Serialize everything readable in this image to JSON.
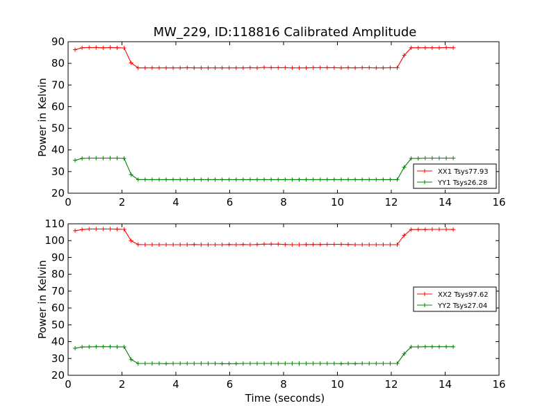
{
  "title": "MW_229, ID:118816 Calibrated Amplitude",
  "colors": {
    "xx": "#ff0000",
    "yy": "#008000"
  },
  "chart_data": [
    {
      "type": "line",
      "title": "MW_229, ID:118816 Calibrated Amplitude",
      "xlabel": "",
      "ylabel": "Power in Kelvin",
      "xlim": [
        0,
        16
      ],
      "ylim": [
        20,
        90
      ],
      "xticks": [
        0,
        2,
        4,
        6,
        8,
        10,
        12,
        14,
        16
      ],
      "yticks": [
        20,
        30,
        40,
        50,
        60,
        70,
        80,
        90
      ],
      "grid": false,
      "legend_position": "lower-right",
      "x": [
        0.26,
        0.52,
        0.78,
        1.04,
        1.3,
        1.56,
        1.82,
        2.08,
        2.34,
        2.6,
        2.86,
        3.12,
        3.38,
        3.64,
        3.9,
        4.16,
        4.42,
        4.68,
        4.94,
        5.2,
        5.46,
        5.72,
        5.98,
        6.24,
        6.5,
        6.76,
        7.02,
        7.28,
        7.54,
        7.8,
        8.06,
        8.32,
        8.58,
        8.84,
        9.1,
        9.36,
        9.62,
        9.88,
        10.14,
        10.4,
        10.66,
        10.92,
        11.18,
        11.44,
        11.7,
        11.96,
        12.22,
        12.48,
        12.74,
        13.0,
        13.26,
        13.52,
        13.78,
        14.04,
        14.3
      ],
      "series": [
        {
          "name": "XX1 Tsys77.93",
          "color": "#ff0000",
          "values": [
            86.3,
            87.2,
            87.3,
            87.3,
            87.2,
            87.3,
            87.2,
            87.1,
            80.2,
            77.9,
            77.9,
            77.9,
            77.9,
            77.9,
            77.9,
            77.9,
            78.0,
            77.9,
            77.9,
            77.9,
            77.9,
            77.9,
            77.9,
            77.9,
            77.9,
            78.0,
            77.9,
            78.1,
            78.0,
            78.0,
            78.0,
            77.9,
            77.9,
            77.9,
            78.0,
            78.0,
            78.0,
            78.0,
            77.9,
            78.0,
            77.9,
            78.0,
            78.0,
            77.9,
            77.9,
            78.0,
            78.0,
            83.7,
            87.2,
            87.2,
            87.2,
            87.2,
            87.2,
            87.3,
            87.2
          ]
        },
        {
          "name": "YY1 Tsys26.28",
          "color": "#008000",
          "values": [
            35.2,
            36.1,
            36.2,
            36.2,
            36.2,
            36.2,
            36.2,
            36.1,
            28.6,
            26.3,
            26.3,
            26.3,
            26.3,
            26.3,
            26.3,
            26.3,
            26.3,
            26.3,
            26.3,
            26.3,
            26.3,
            26.3,
            26.3,
            26.3,
            26.3,
            26.3,
            26.3,
            26.3,
            26.3,
            26.3,
            26.3,
            26.3,
            26.3,
            26.3,
            26.3,
            26.3,
            26.3,
            26.3,
            26.3,
            26.3,
            26.3,
            26.3,
            26.3,
            26.3,
            26.3,
            26.3,
            26.3,
            32.0,
            36.1,
            36.1,
            36.2,
            36.2,
            36.2,
            36.2,
            36.2
          ]
        }
      ]
    },
    {
      "type": "line",
      "title": "",
      "xlabel": "Time (seconds)",
      "ylabel": "Power in Kelvin",
      "xlim": [
        0,
        16
      ],
      "ylim": [
        20,
        110
      ],
      "xticks": [
        0,
        2,
        4,
        6,
        8,
        10,
        12,
        14,
        16
      ],
      "yticks": [
        20,
        30,
        40,
        50,
        60,
        70,
        80,
        90,
        100,
        110
      ],
      "grid": false,
      "legend_position": "center-right",
      "x": [
        0.26,
        0.52,
        0.78,
        1.04,
        1.3,
        1.56,
        1.82,
        2.08,
        2.34,
        2.6,
        2.86,
        3.12,
        3.38,
        3.64,
        3.9,
        4.16,
        4.42,
        4.68,
        4.94,
        5.2,
        5.46,
        5.72,
        5.98,
        6.24,
        6.5,
        6.76,
        7.02,
        7.28,
        7.54,
        7.8,
        8.06,
        8.32,
        8.58,
        8.84,
        9.1,
        9.36,
        9.62,
        9.88,
        10.14,
        10.4,
        10.66,
        10.92,
        11.18,
        11.44,
        11.7,
        11.96,
        12.22,
        12.48,
        12.74,
        13.0,
        13.26,
        13.52,
        13.78,
        14.04,
        14.3
      ],
      "series": [
        {
          "name": "XX2 Tsys97.62",
          "color": "#ff0000",
          "values": [
            105.9,
            106.6,
            106.9,
            106.9,
            106.9,
            106.9,
            106.8,
            106.7,
            99.9,
            97.7,
            97.6,
            97.6,
            97.6,
            97.6,
            97.6,
            97.6,
            97.6,
            97.7,
            97.6,
            97.6,
            97.6,
            97.6,
            97.7,
            97.6,
            97.7,
            97.6,
            97.7,
            97.9,
            97.9,
            97.9,
            97.7,
            97.6,
            97.6,
            97.7,
            97.7,
            97.7,
            97.8,
            97.8,
            97.8,
            97.7,
            97.6,
            97.6,
            97.6,
            97.6,
            97.6,
            97.6,
            97.6,
            103.2,
            106.6,
            106.6,
            106.6,
            106.7,
            106.7,
            106.7,
            106.6
          ]
        },
        {
          "name": "YY2 Tsys27.04",
          "color": "#008000",
          "values": [
            36.1,
            36.8,
            36.9,
            37.0,
            37.0,
            37.0,
            36.9,
            36.9,
            29.4,
            27.0,
            27.0,
            27.0,
            27.0,
            26.9,
            27.0,
            27.0,
            27.0,
            27.0,
            27.0,
            27.0,
            27.0,
            26.9,
            26.9,
            26.9,
            27.0,
            27.0,
            27.0,
            27.0,
            27.0,
            27.0,
            27.0,
            27.0,
            27.0,
            27.0,
            27.0,
            27.0,
            27.0,
            27.0,
            26.9,
            27.0,
            26.9,
            27.0,
            27.0,
            27.0,
            27.0,
            27.0,
            27.0,
            32.8,
            36.9,
            36.9,
            37.0,
            37.0,
            37.0,
            37.0,
            37.0
          ]
        }
      ]
    }
  ]
}
